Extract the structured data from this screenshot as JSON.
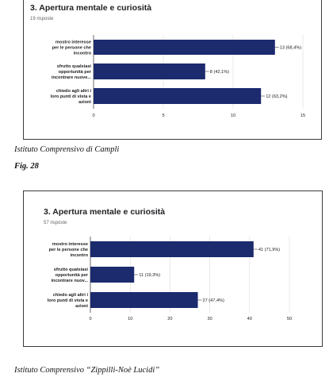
{
  "charts": [
    {
      "title": "3. Apertura mentale e curiosità",
      "subtitle": "19 risposte",
      "chart_data": {
        "type": "bar",
        "orientation": "horizontal",
        "categories": [
          [
            "mostro interesse",
            "per le persone che",
            "incontro"
          ],
          [
            "sfrutto qualsiasi",
            "opportunità per",
            "incontrare nuove..."
          ],
          [
            "chiedo agli altri i",
            "loro punti di vista e",
            "azioni"
          ]
        ],
        "values": [
          13,
          8,
          12
        ],
        "value_labels": [
          "13 (68,4%)",
          "8 (42,1%)",
          "12 (63,2%)"
        ],
        "xlim": [
          0,
          15
        ],
        "ticks": [
          0,
          5,
          10,
          15
        ],
        "tick_labels": [
          "0",
          "5",
          "10",
          "15"
        ],
        "grid": true,
        "bar_color": "#1c2a6e"
      }
    },
    {
      "title": "3. Apertura mentale e curiosità",
      "subtitle": "57 risposte",
      "chart_data": {
        "type": "bar",
        "orientation": "horizontal",
        "categories": [
          [
            "mostro interesse",
            "per le persone che",
            "incontro"
          ],
          [
            "sfrutto qualsiasi",
            "opportunità per",
            "incontrare nuov..."
          ],
          [
            "chiedo agli altri i",
            "loro punti di vista e",
            "azioni"
          ]
        ],
        "values": [
          41,
          11,
          27
        ],
        "value_labels": [
          "41 (71,9%)",
          "11 (19,3%)",
          "27 (47,4%)"
        ],
        "xlim": [
          0,
          50
        ],
        "ticks": [
          0,
          10,
          20,
          30,
          40,
          50
        ],
        "tick_labels": [
          "0",
          "10",
          "20",
          "30",
          "40",
          "50"
        ],
        "grid": true,
        "bar_color": "#1c2a6e"
      }
    }
  ],
  "captions": {
    "school1": "Istituto Comprensivo di Campli",
    "fig": "Fig. 28",
    "school2": "Istituto Comprensivo “Zippilli-Noè Lucidi”"
  }
}
